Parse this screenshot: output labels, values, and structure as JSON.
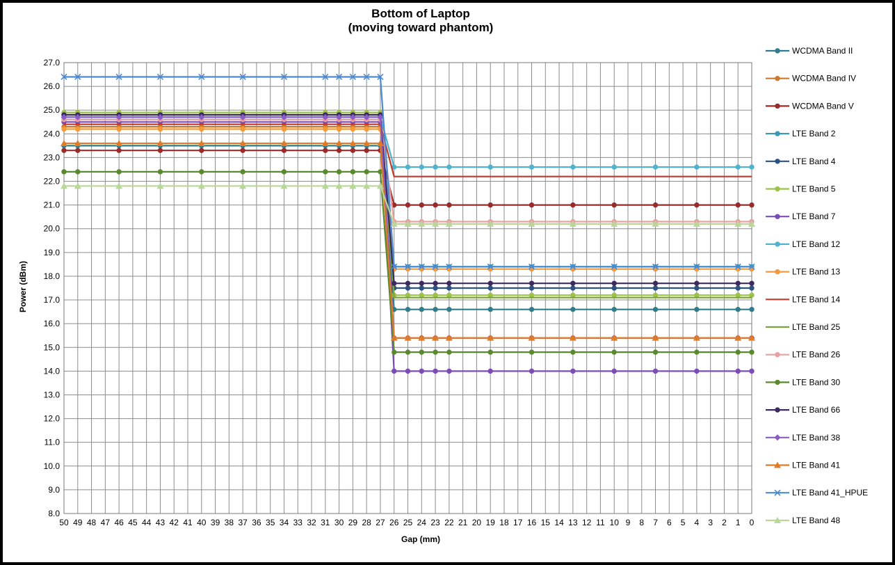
{
  "chart_data": {
    "type": "line",
    "title": "Bottom of Laptop",
    "subtitle": "(moving toward phantom)",
    "xlabel": "Gap (mm)",
    "ylabel": "Power (dBm)",
    "ylim": [
      8.0,
      27.0
    ],
    "ytick_step": 1.0,
    "x_categories": [
      "50",
      "49",
      "48",
      "47",
      "46",
      "45",
      "44",
      "43",
      "42",
      "41",
      "40",
      "39",
      "38",
      "37",
      "36",
      "35",
      "34",
      "33",
      "32",
      "31",
      "30",
      "29",
      "28",
      "27",
      "26",
      "25",
      "24",
      "23",
      "22",
      "21",
      "20",
      "19",
      "18",
      "17",
      "16",
      "15",
      "14",
      "13",
      "12",
      "11",
      "10",
      "9",
      "8",
      "7",
      "6",
      "5",
      "4",
      "3",
      "2",
      "1",
      "0"
    ],
    "x_points": [
      50,
      49,
      46,
      43,
      40,
      37,
      34,
      31,
      30,
      29,
      28,
      27,
      26,
      25,
      24,
      23,
      22,
      19,
      16,
      13,
      10,
      7,
      4,
      1,
      0
    ],
    "grid": true,
    "legend_position": "right",
    "series": [
      {
        "name": "WCDMA Band II",
        "color": "#2e7d8c",
        "marker": "circle",
        "values": [
          23.5,
          23.5,
          23.5,
          23.5,
          23.5,
          23.5,
          23.5,
          23.5,
          23.5,
          23.5,
          23.5,
          23.5,
          16.6,
          16.6,
          16.6,
          16.6,
          16.6,
          16.6,
          16.6,
          16.6,
          16.6,
          16.6,
          16.6,
          16.6,
          16.6
        ]
      },
      {
        "name": "WCDMA Band IV",
        "color": "#d0782a",
        "marker": "circle",
        "values": [
          24.3,
          24.3,
          24.3,
          24.3,
          24.3,
          24.3,
          24.3,
          24.3,
          24.3,
          24.3,
          24.3,
          24.3,
          15.4,
          15.4,
          15.4,
          15.4,
          15.4,
          15.4,
          15.4,
          15.4,
          15.4,
          15.4,
          15.4,
          15.4,
          15.4
        ]
      },
      {
        "name": "WCDMA Band V",
        "color": "#9b2a2a",
        "marker": "circle",
        "values": [
          23.3,
          23.3,
          23.3,
          23.3,
          23.3,
          23.3,
          23.3,
          23.3,
          23.3,
          23.3,
          23.3,
          23.3,
          21.0,
          21.0,
          21.0,
          21.0,
          21.0,
          21.0,
          21.0,
          21.0,
          21.0,
          21.0,
          21.0,
          21.0,
          21.0
        ]
      },
      {
        "name": "LTE Band 2",
        "color": "#3b9bb5",
        "marker": "circle",
        "values": [
          24.6,
          24.6,
          24.6,
          24.6,
          24.6,
          24.6,
          24.6,
          24.6,
          24.6,
          24.6,
          24.6,
          24.6,
          18.4,
          18.4,
          18.4,
          18.4,
          18.4,
          18.4,
          18.4,
          18.4,
          18.4,
          18.4,
          18.4,
          18.4,
          18.4
        ]
      },
      {
        "name": "LTE Band 4",
        "color": "#2c5282",
        "marker": "circle",
        "values": [
          24.8,
          24.8,
          24.8,
          24.8,
          24.8,
          24.8,
          24.8,
          24.8,
          24.8,
          24.8,
          24.8,
          24.8,
          17.5,
          17.5,
          17.5,
          17.5,
          17.5,
          17.5,
          17.5,
          17.5,
          17.5,
          17.5,
          17.5,
          17.5,
          17.5
        ]
      },
      {
        "name": "LTE Band 5",
        "color": "#9cc24a",
        "marker": "circle",
        "values": [
          24.9,
          24.9,
          24.9,
          24.9,
          24.9,
          24.9,
          24.9,
          24.9,
          24.9,
          24.9,
          24.9,
          24.9,
          17.2,
          17.2,
          17.2,
          17.2,
          17.2,
          17.2,
          17.2,
          17.2,
          17.2,
          17.2,
          17.2,
          17.2,
          17.2
        ]
      },
      {
        "name": "LTE Band 7",
        "color": "#7b4db5",
        "marker": "circle",
        "values": [
          24.5,
          24.5,
          24.5,
          24.5,
          24.5,
          24.5,
          24.5,
          24.5,
          24.5,
          24.5,
          24.5,
          24.5,
          14.0,
          14.0,
          14.0,
          14.0,
          14.0,
          14.0,
          14.0,
          14.0,
          14.0,
          14.0,
          14.0,
          14.0,
          14.0
        ]
      },
      {
        "name": "LTE Band 12",
        "color": "#4fb3cf",
        "marker": "circle",
        "values": [
          24.7,
          24.7,
          24.7,
          24.7,
          24.7,
          24.7,
          24.7,
          24.7,
          24.7,
          24.7,
          24.7,
          24.7,
          22.6,
          22.6,
          22.6,
          22.6,
          22.6,
          22.6,
          22.6,
          22.6,
          22.6,
          22.6,
          22.6,
          22.6,
          22.6
        ]
      },
      {
        "name": "LTE Band 13",
        "color": "#f59a3a",
        "marker": "circle",
        "values": [
          24.2,
          24.2,
          24.2,
          24.2,
          24.2,
          24.2,
          24.2,
          24.2,
          24.2,
          24.2,
          24.2,
          24.2,
          18.3,
          18.3,
          18.3,
          18.3,
          18.3,
          18.3,
          18.3,
          18.3,
          18.3,
          18.3,
          18.3,
          18.3,
          18.3
        ]
      },
      {
        "name": "LTE Band 14",
        "color": "#c0392b",
        "marker": "none",
        "values": [
          24.4,
          24.4,
          24.4,
          24.4,
          24.4,
          24.4,
          24.4,
          24.4,
          24.4,
          24.4,
          24.4,
          24.4,
          22.2,
          22.2,
          22.2,
          22.2,
          22.2,
          22.2,
          22.2,
          22.2,
          22.2,
          22.2,
          22.2,
          22.2,
          22.2
        ]
      },
      {
        "name": "LTE Band 25",
        "color": "#7ca23a",
        "marker": "none",
        "values": [
          24.8,
          24.8,
          24.8,
          24.8,
          24.8,
          24.8,
          24.8,
          24.8,
          24.8,
          24.8,
          24.8,
          24.8,
          17.1,
          17.1,
          17.1,
          17.1,
          17.1,
          17.1,
          17.1,
          17.1,
          17.1,
          17.1,
          17.1,
          17.1,
          17.1
        ]
      },
      {
        "name": "LTE Band 26",
        "color": "#e8a0a0",
        "marker": "circle",
        "values": [
          24.6,
          24.6,
          24.6,
          24.6,
          24.6,
          24.6,
          24.6,
          24.6,
          24.6,
          24.6,
          24.6,
          24.6,
          20.3,
          20.3,
          20.3,
          20.3,
          20.3,
          20.3,
          20.3,
          20.3,
          20.3,
          20.3,
          20.3,
          20.3,
          20.3
        ]
      },
      {
        "name": "LTE Band 30",
        "color": "#5a8a2e",
        "marker": "circle",
        "values": [
          22.4,
          22.4,
          22.4,
          22.4,
          22.4,
          22.4,
          22.4,
          22.4,
          22.4,
          22.4,
          22.4,
          22.4,
          14.8,
          14.8,
          14.8,
          14.8,
          14.8,
          14.8,
          14.8,
          14.8,
          14.8,
          14.8,
          14.8,
          14.8,
          14.8
        ]
      },
      {
        "name": "LTE Band 66",
        "color": "#3d2b5e",
        "marker": "circle",
        "values": [
          24.8,
          24.8,
          24.8,
          24.8,
          24.8,
          24.8,
          24.8,
          24.8,
          24.8,
          24.8,
          24.8,
          24.8,
          17.7,
          17.7,
          17.7,
          17.7,
          17.7,
          17.7,
          17.7,
          17.7,
          17.7,
          17.7,
          17.7,
          17.7,
          17.7
        ]
      },
      {
        "name": "LTE Band 38",
        "color": "#8a5cc7",
        "marker": "diamond",
        "values": [
          24.7,
          24.7,
          24.7,
          24.7,
          24.7,
          24.7,
          24.7,
          24.7,
          24.7,
          24.7,
          24.7,
          24.7,
          15.4,
          15.4,
          15.4,
          15.4,
          15.4,
          15.4,
          15.4,
          15.4,
          15.4,
          15.4,
          15.4,
          15.4,
          15.4
        ]
      },
      {
        "name": "LTE Band 41",
        "color": "#e07b28",
        "marker": "triangle",
        "values": [
          23.6,
          23.6,
          23.6,
          23.6,
          23.6,
          23.6,
          23.6,
          23.6,
          23.6,
          23.6,
          23.6,
          23.6,
          15.4,
          15.4,
          15.4,
          15.4,
          15.4,
          15.4,
          15.4,
          15.4,
          15.4,
          15.4,
          15.4,
          15.4,
          15.4
        ]
      },
      {
        "name": "LTE Band 41_HPUE",
        "color": "#4a8ad4",
        "marker": "x",
        "values": [
          26.4,
          26.4,
          26.4,
          26.4,
          26.4,
          26.4,
          26.4,
          26.4,
          26.4,
          26.4,
          26.4,
          26.4,
          18.4,
          18.4,
          18.4,
          18.4,
          18.4,
          18.4,
          18.4,
          18.4,
          18.4,
          18.4,
          18.4,
          18.4,
          18.4
        ]
      },
      {
        "name": "LTE Band 48",
        "color": "#b9d79a",
        "marker": "triangle",
        "values": [
          21.8,
          21.8,
          21.8,
          21.8,
          21.8,
          21.8,
          21.8,
          21.8,
          21.8,
          21.8,
          21.8,
          21.8,
          20.2,
          20.2,
          20.2,
          20.2,
          20.2,
          20.2,
          20.2,
          20.2,
          20.2,
          20.2,
          20.2,
          20.2,
          20.2
        ]
      }
    ]
  }
}
